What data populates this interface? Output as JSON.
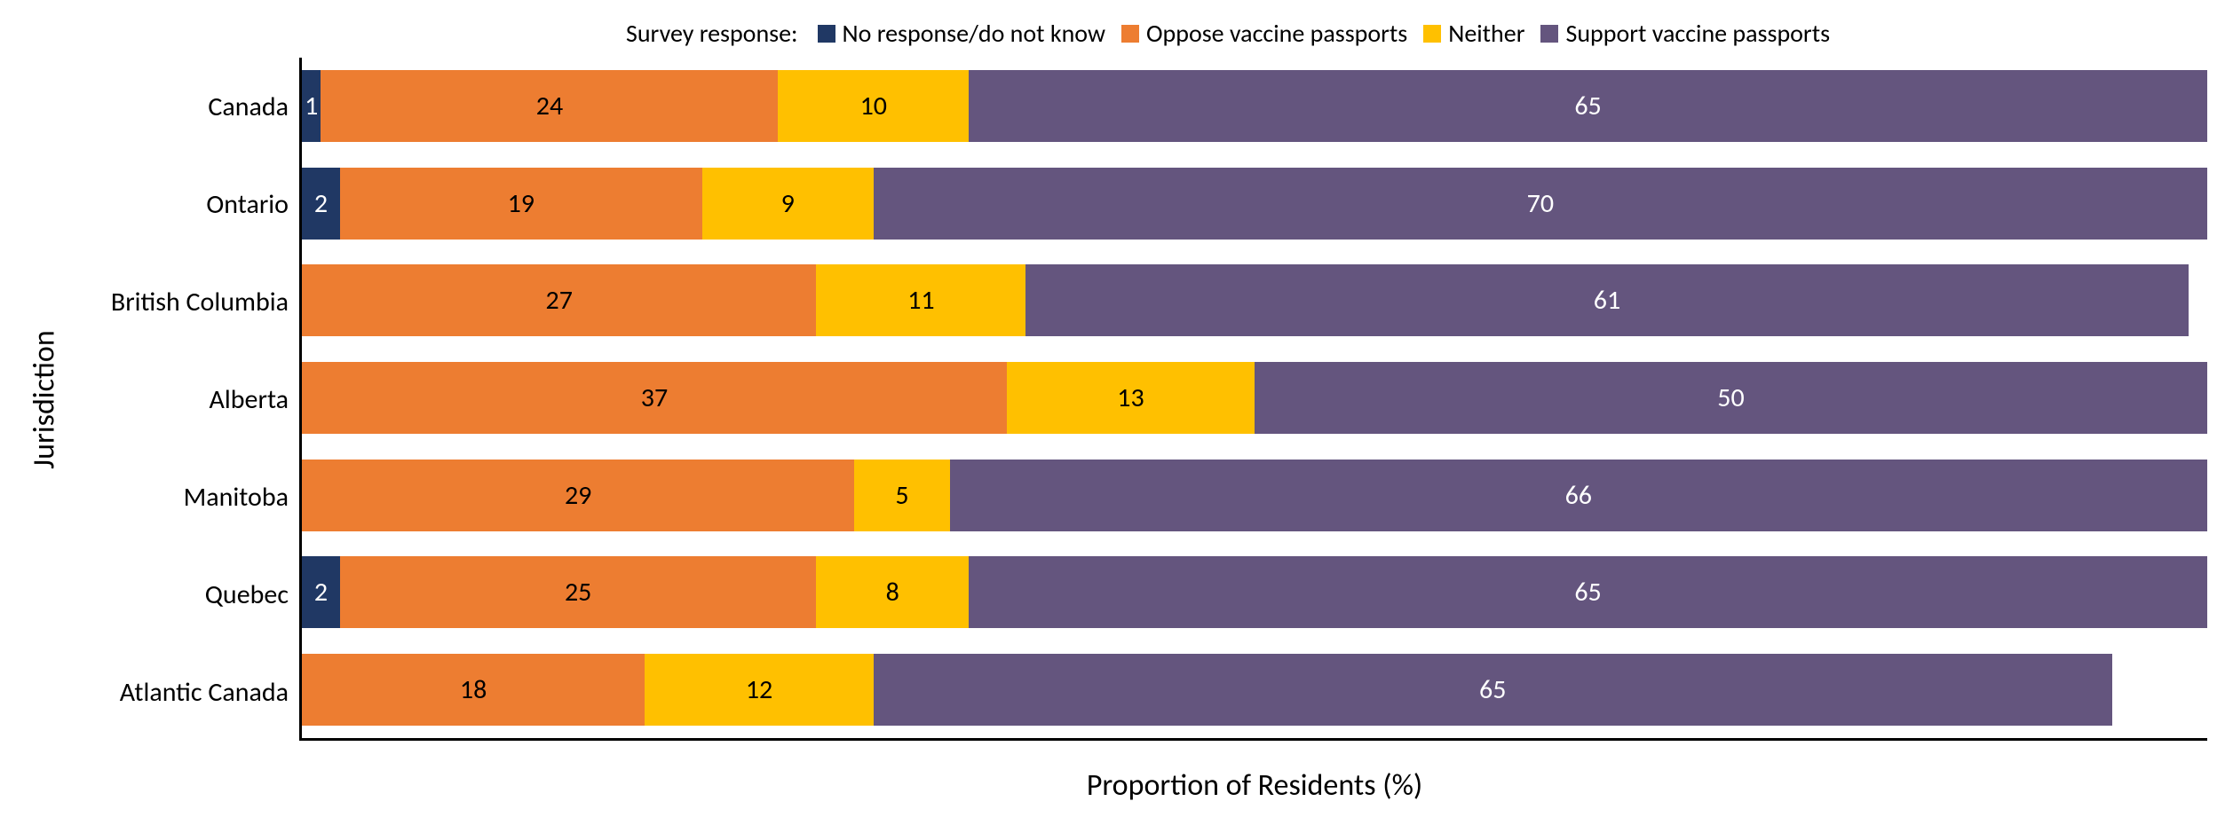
{
  "chart": {
    "type": "stacked-horizontal-bar",
    "legend_title": "Survey response:",
    "series": [
      {
        "key": "no_response",
        "label": "No response/do not know",
        "color": "#203864"
      },
      {
        "key": "oppose",
        "label": "Oppose vaccine passports",
        "color": "#ed7d31"
      },
      {
        "key": "neither",
        "label": "Neither",
        "color": "#ffc000"
      },
      {
        "key": "support",
        "label": "Support vaccine passports",
        "color": "#64557e"
      }
    ],
    "yaxis_title": "Jurisdiction",
    "xaxis_title": "Proportion of Residents (%)",
    "xlim": [
      0,
      100
    ],
    "categories": [
      "Canada",
      "Ontario",
      "British Columbia",
      "Alberta",
      "Manitoba",
      "Quebec",
      "Atlantic Canada"
    ],
    "data": {
      "no_response": [
        1,
        2,
        0,
        0,
        0,
        2,
        0
      ],
      "oppose": [
        24,
        19,
        27,
        37,
        29,
        25,
        18
      ],
      "neither": [
        10,
        9,
        11,
        13,
        5,
        8,
        12
      ],
      "support": [
        65,
        70,
        61,
        50,
        66,
        65,
        65
      ]
    },
    "label_min_to_show": 1,
    "dark_text_series": [
      "neither",
      "oppose"
    ],
    "title_fontsize": 34,
    "label_fontsize": 30,
    "legend_fontsize": 28,
    "bar_height_pct": 74,
    "background_color": "#ffffff",
    "axis_color": "#000000"
  }
}
